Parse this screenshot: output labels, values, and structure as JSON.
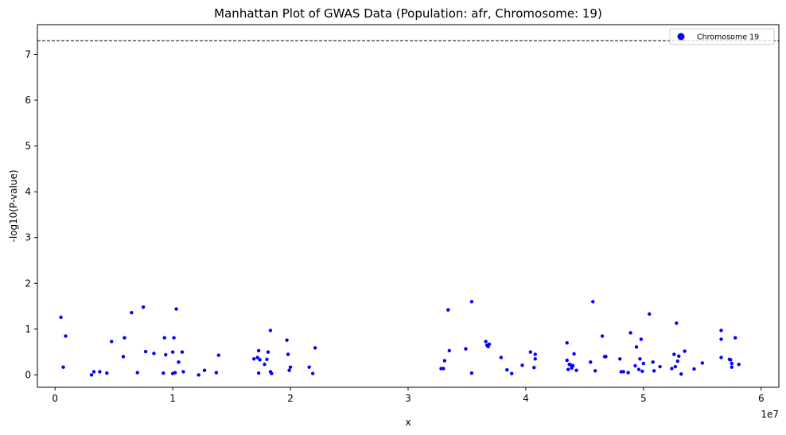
{
  "chart_data": {
    "type": "scatter",
    "title": "Manhattan Plot of GWAS Data (Population: afr, Chromosome: 19)",
    "xlabel": "x",
    "ylabel": "-log10(P-value)",
    "x_offset_label": "1e7",
    "xlim": [
      -1500000,
      61500000
    ],
    "ylim": [
      -0.27,
      7.65
    ],
    "xticks": [
      0,
      10000000,
      20000000,
      30000000,
      40000000,
      50000000,
      60000000
    ],
    "xtick_labels": [
      "0",
      "1",
      "2",
      "3",
      "4",
      "5",
      "6"
    ],
    "yticks": [
      0,
      1,
      2,
      3,
      4,
      5,
      6,
      7
    ],
    "ytick_labels": [
      "0",
      "1",
      "2",
      "3",
      "4",
      "5",
      "6",
      "7"
    ],
    "threshold": 7.3,
    "grid": false,
    "legend_position": "top-right",
    "series": [
      {
        "name": "Chromosome 19",
        "color": "#0000ff",
        "points": [
          [
            500000,
            1.26
          ],
          [
            700000,
            0.17
          ],
          [
            900000,
            0.85
          ],
          [
            3100000,
            0.0
          ],
          [
            3300000,
            0.07
          ],
          [
            3800000,
            0.07
          ],
          [
            4400000,
            0.04
          ],
          [
            4800000,
            0.73
          ],
          [
            5800000,
            0.4
          ],
          [
            5900000,
            0.81
          ],
          [
            6500000,
            1.36
          ],
          [
            7000000,
            0.05
          ],
          [
            7500000,
            1.48
          ],
          [
            7700000,
            0.51
          ],
          [
            8400000,
            0.47
          ],
          [
            9200000,
            0.04
          ],
          [
            9300000,
            0.81
          ],
          [
            9400000,
            0.44
          ],
          [
            10000000,
            0.5
          ],
          [
            10000000,
            0.03
          ],
          [
            10100000,
            0.81
          ],
          [
            10200000,
            0.05
          ],
          [
            10300000,
            1.44
          ],
          [
            10500000,
            0.28
          ],
          [
            10800000,
            0.5
          ],
          [
            10900000,
            0.07
          ],
          [
            12200000,
            0.0
          ],
          [
            12700000,
            0.1
          ],
          [
            13700000,
            0.05
          ],
          [
            13900000,
            0.43
          ],
          [
            16900000,
            0.35
          ],
          [
            17200000,
            0.38
          ],
          [
            17300000,
            0.53
          ],
          [
            17300000,
            0.04
          ],
          [
            17400000,
            0.33
          ],
          [
            17800000,
            0.23
          ],
          [
            18000000,
            0.34
          ],
          [
            18100000,
            0.5
          ],
          [
            18300000,
            0.97
          ],
          [
            18300000,
            0.07
          ],
          [
            18400000,
            0.03
          ],
          [
            19700000,
            0.76
          ],
          [
            19800000,
            0.45
          ],
          [
            19900000,
            0.1
          ],
          [
            20000000,
            0.17
          ],
          [
            21600000,
            0.17
          ],
          [
            21900000,
            0.03
          ],
          [
            22100000,
            0.59
          ],
          [
            32800000,
            0.14
          ],
          [
            33000000,
            0.14
          ],
          [
            33100000,
            0.31
          ],
          [
            33400000,
            1.42
          ],
          [
            33500000,
            0.53
          ],
          [
            34900000,
            0.57
          ],
          [
            35400000,
            1.6
          ],
          [
            35400000,
            0.04
          ],
          [
            36600000,
            0.73
          ],
          [
            36700000,
            0.65
          ],
          [
            36800000,
            0.62
          ],
          [
            36900000,
            0.67
          ],
          [
            37900000,
            0.38
          ],
          [
            38400000,
            0.11
          ],
          [
            38800000,
            0.03
          ],
          [
            39700000,
            0.21
          ],
          [
            40400000,
            0.5
          ],
          [
            40700000,
            0.16
          ],
          [
            40800000,
            0.35
          ],
          [
            40800000,
            0.45
          ],
          [
            43500000,
            0.7
          ],
          [
            43500000,
            0.32
          ],
          [
            43600000,
            0.12
          ],
          [
            43700000,
            0.23
          ],
          [
            43800000,
            0.22
          ],
          [
            43900000,
            0.15
          ],
          [
            44000000,
            0.2
          ],
          [
            44100000,
            0.46
          ],
          [
            44300000,
            0.1
          ],
          [
            45500000,
            0.28
          ],
          [
            45700000,
            1.6
          ],
          [
            45900000,
            0.09
          ],
          [
            46500000,
            0.85
          ],
          [
            46700000,
            0.4
          ],
          [
            46800000,
            0.4
          ],
          [
            48000000,
            0.35
          ],
          [
            48100000,
            0.07
          ],
          [
            48300000,
            0.07
          ],
          [
            48700000,
            0.05
          ],
          [
            48900000,
            0.92
          ],
          [
            49300000,
            0.2
          ],
          [
            49400000,
            0.61
          ],
          [
            49600000,
            0.12
          ],
          [
            49700000,
            0.35
          ],
          [
            49800000,
            0.78
          ],
          [
            49900000,
            0.08
          ],
          [
            50000000,
            0.25
          ],
          [
            50500000,
            1.33
          ],
          [
            50800000,
            0.28
          ],
          [
            50900000,
            0.09
          ],
          [
            51400000,
            0.18
          ],
          [
            52400000,
            0.14
          ],
          [
            52600000,
            0.45
          ],
          [
            52700000,
            0.18
          ],
          [
            52800000,
            1.13
          ],
          [
            52900000,
            0.3
          ],
          [
            53000000,
            0.41
          ],
          [
            53200000,
            0.02
          ],
          [
            53500000,
            0.52
          ],
          [
            54300000,
            0.13
          ],
          [
            55000000,
            0.26
          ],
          [
            56600000,
            0.97
          ],
          [
            56600000,
            0.78
          ],
          [
            56600000,
            0.38
          ],
          [
            57300000,
            0.34
          ],
          [
            57400000,
            0.33
          ],
          [
            57500000,
            0.17
          ],
          [
            57500000,
            0.25
          ],
          [
            57800000,
            0.81
          ],
          [
            58100000,
            0.23
          ]
        ]
      }
    ]
  }
}
